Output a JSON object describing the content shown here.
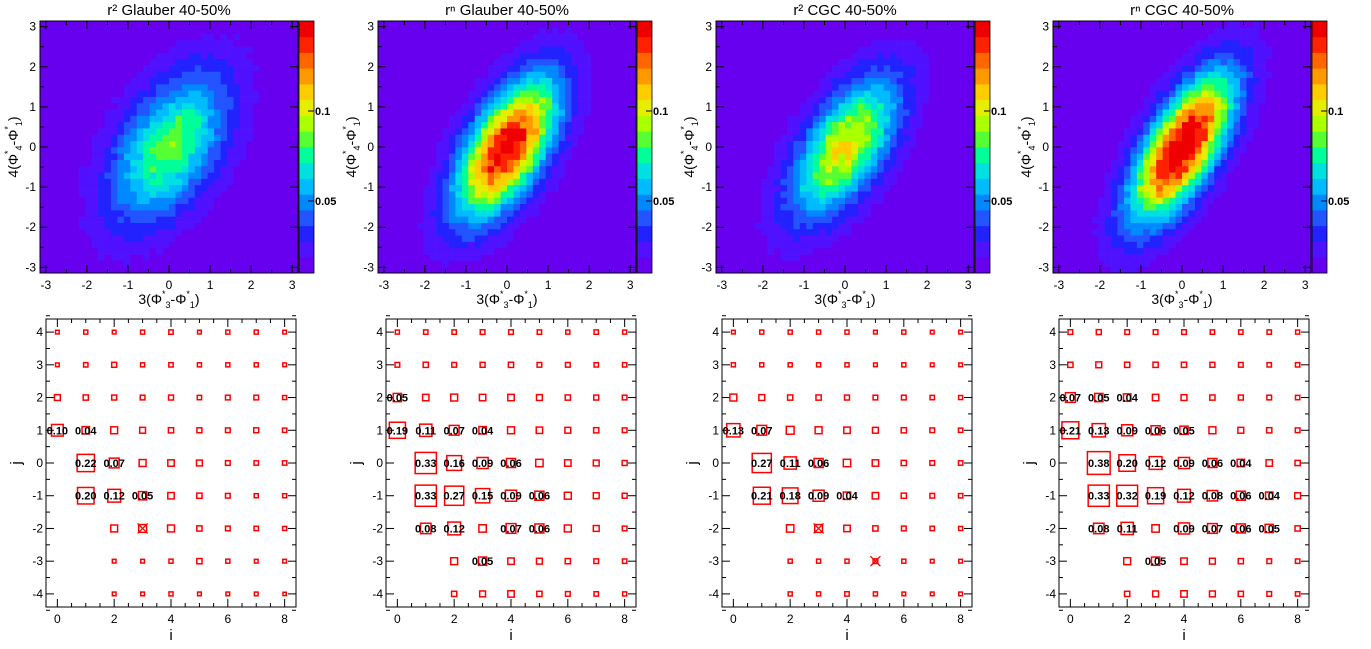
{
  "colors": {
    "box": "#ff0000",
    "axis": "#000000",
    "palette": [
      "#6600ee",
      "#5011ff",
      "#2222ff",
      "#2255ff",
      "#0088ff",
      "#00bbff",
      "#00e0e0",
      "#00ff99",
      "#55ff33",
      "#aaff00",
      "#e6ee00",
      "#ffcc00",
      "#ff9900",
      "#ff6600",
      "#ff2200",
      "#ee0000"
    ]
  },
  "colorbar": {
    "tick_labels": [
      "0.1",
      "0.05"
    ],
    "tick_values": [
      0.1,
      0.05
    ]
  },
  "chart_data": [
    {
      "type": "heatmap",
      "title": "r² Glauber 40-50%",
      "xlabel": "3(Φ₃*-Φ₁*)",
      "ylabel": "4(Φ₄*-Φ₁*)",
      "xlim": [
        -3.1416,
        3.1416
      ],
      "ylim": [
        -3.1416,
        3.1416
      ],
      "x_ticks": [
        -3,
        -2,
        -1,
        0,
        1,
        2,
        3
      ],
      "y_ticks": [
        -3,
        -2,
        -1,
        0,
        1,
        2,
        3
      ],
      "z_range": [
        0.01,
        0.15
      ],
      "peak": 0.085,
      "background": 0.012,
      "correlation": 0.5,
      "sigma_x": 1.0,
      "sigma_y": 1.3,
      "fine_grid": 50
    },
    {
      "type": "heatmap",
      "title": "rⁿ Glauber 40-50%",
      "xlabel": "3(Φ₃*-Φ₁*)",
      "ylabel": "4(Φ₄*-Φ₁*)",
      "xlim": [
        -3.1416,
        3.1416
      ],
      "ylim": [
        -3.1416,
        3.1416
      ],
      "x_ticks": [
        -3,
        -2,
        -1,
        0,
        1,
        2,
        3
      ],
      "y_ticks": [
        -3,
        -2,
        -1,
        0,
        1,
        2,
        3
      ],
      "z_range": [
        0.01,
        0.15
      ],
      "peak": 0.15,
      "background": 0.012,
      "correlation": 0.6,
      "sigma_x": 0.85,
      "sigma_y": 1.2,
      "fine_grid": 50
    },
    {
      "type": "heatmap",
      "title": "r² CGC 40-50%",
      "xlabel": "3(Φ₃*-Φ₁*)",
      "ylabel": "4(Φ₄*-Φ₁*)",
      "xlim": [
        -3.1416,
        3.1416
      ],
      "ylim": [
        -3.1416,
        3.1416
      ],
      "x_ticks": [
        -3,
        -2,
        -1,
        0,
        1,
        2,
        3
      ],
      "y_ticks": [
        -3,
        -2,
        -1,
        0,
        1,
        2,
        3
      ],
      "z_range": [
        0.01,
        0.15
      ],
      "peak": 0.105,
      "background": 0.012,
      "correlation": 0.6,
      "sigma_x": 0.9,
      "sigma_y": 1.2,
      "fine_grid": 50
    },
    {
      "type": "heatmap",
      "title": "rⁿ CGC 40-50%",
      "xlabel": "3(Φ₃*-Φ₁*)",
      "ylabel": "4(Φ₄*-Φ₁*)",
      "xlim": [
        -3.1416,
        3.1416
      ],
      "ylim": [
        -3.1416,
        3.1416
      ],
      "x_ticks": [
        -3,
        -2,
        -1,
        0,
        1,
        2,
        3
      ],
      "y_ticks": [
        -3,
        -2,
        -1,
        0,
        1,
        2,
        3
      ],
      "z_range": [
        0.01,
        0.15
      ],
      "peak": 0.16,
      "background": 0.012,
      "correlation": 0.68,
      "sigma_x": 0.85,
      "sigma_y": 1.25,
      "fine_grid": 50
    },
    {
      "type": "box",
      "xlabel": "i",
      "ylabel": "j",
      "xlim": [
        -0.4,
        8.4
      ],
      "ylim": [
        -4.4,
        4.4
      ],
      "x_ticks": [
        0,
        2,
        4,
        6,
        8
      ],
      "y_ticks": [
        -4,
        -3,
        -2,
        -1,
        0,
        1,
        2,
        3,
        4
      ],
      "i_values": [
        0,
        1,
        2,
        3,
        4,
        5,
        6,
        7,
        8
      ],
      "j_values": [
        4,
        3,
        2,
        1,
        0,
        -1,
        -2,
        -3,
        -4
      ],
      "sizes": [
        [
          0.01,
          0.012,
          0.01,
          0.012,
          0.014,
          0.01,
          0.012,
          0.012,
          0.01
        ],
        [
          0.01,
          0.014,
          0.018,
          0.012,
          0.014,
          0.012,
          0.012,
          0.012,
          0.01
        ],
        [
          0.025,
          0.02,
          0.018,
          0.016,
          0.018,
          0.014,
          0.016,
          0.016,
          0.012
        ],
        [
          0.1,
          0.04,
          0.035,
          0.025,
          0.02,
          0.018,
          0.016,
          0.018,
          0.014
        ],
        [
          0.0,
          0.22,
          0.07,
          0.035,
          0.03,
          0.025,
          0.016,
          0.014,
          0.014
        ],
        [
          0.0,
          0.2,
          0.12,
          0.05,
          0.03,
          0.02,
          0.016,
          0.012,
          0.012
        ],
        [
          0.0,
          0.0,
          0.035,
          0.045,
          0.035,
          0.02,
          0.016,
          0.014,
          0.012
        ],
        [
          0.0,
          0.0,
          0.01,
          0.01,
          0.012,
          0.02,
          0.012,
          0.01,
          0.01
        ],
        [
          0.0,
          0.0,
          0.01,
          0.01,
          0.012,
          0.01,
          0.01,
          0.01,
          0.008
        ]
      ],
      "labels": [
        {
          "i": 0,
          "j": 1,
          "text": "0.10"
        },
        {
          "i": 1,
          "j": 1,
          "text": "0.04"
        },
        {
          "i": 1,
          "j": 0,
          "text": "0.22"
        },
        {
          "i": 2,
          "j": 0,
          "text": "0.07"
        },
        {
          "i": 1,
          "j": -1,
          "text": "0.20"
        },
        {
          "i": 2,
          "j": -1,
          "text": "0.12"
        },
        {
          "i": 3,
          "j": -1,
          "text": "0.05"
        }
      ],
      "crossed": [
        {
          "i": 3,
          "j": -2
        }
      ]
    },
    {
      "type": "box",
      "xlabel": "i",
      "ylabel": "j",
      "xlim": [
        -0.4,
        8.4
      ],
      "ylim": [
        -4.4,
        4.4
      ],
      "x_ticks": [
        0,
        2,
        4,
        6,
        8
      ],
      "y_ticks": [
        -4,
        -3,
        -2,
        -1,
        0,
        1,
        2,
        3,
        4
      ],
      "i_values": [
        0,
        1,
        2,
        3,
        4,
        5,
        6,
        7,
        8
      ],
      "j_values": [
        4,
        3,
        2,
        1,
        0,
        -1,
        -2,
        -3,
        -4
      ],
      "sizes": [
        [
          0.012,
          0.014,
          0.014,
          0.016,
          0.016,
          0.014,
          0.012,
          0.014,
          0.012
        ],
        [
          0.016,
          0.02,
          0.016,
          0.018,
          0.02,
          0.016,
          0.016,
          0.014,
          0.014
        ],
        [
          0.05,
          0.03,
          0.035,
          0.03,
          0.03,
          0.025,
          0.02,
          0.018,
          0.016
        ],
        [
          0.19,
          0.11,
          0.07,
          0.04,
          0.035,
          0.03,
          0.025,
          0.02,
          0.016
        ],
        [
          0.0,
          0.33,
          0.16,
          0.09,
          0.06,
          0.04,
          0.03,
          0.025,
          0.018
        ],
        [
          0.0,
          0.33,
          0.27,
          0.15,
          0.09,
          0.06,
          0.035,
          0.025,
          0.018
        ],
        [
          0.0,
          0.08,
          0.12,
          0.04,
          0.07,
          0.06,
          0.035,
          0.025,
          0.016
        ],
        [
          0.0,
          0.0,
          0.035,
          0.05,
          0.03,
          0.025,
          0.02,
          0.016,
          0.014
        ],
        [
          0.0,
          0.0,
          0.02,
          0.025,
          0.03,
          0.02,
          0.016,
          0.014,
          0.012
        ]
      ],
      "labels": [
        {
          "i": 0,
          "j": 2,
          "text": "0.05"
        },
        {
          "i": 0,
          "j": 1,
          "text": "0.19"
        },
        {
          "i": 1,
          "j": 1,
          "text": "0.11"
        },
        {
          "i": 2,
          "j": 1,
          "text": "0.07"
        },
        {
          "i": 3,
          "j": 1,
          "text": "0.04"
        },
        {
          "i": 1,
          "j": 0,
          "text": "0.33"
        },
        {
          "i": 2,
          "j": 0,
          "text": "0.16"
        },
        {
          "i": 3,
          "j": 0,
          "text": "0.09"
        },
        {
          "i": 4,
          "j": 0,
          "text": "0.06"
        },
        {
          "i": 1,
          "j": -1,
          "text": "0.33"
        },
        {
          "i": 2,
          "j": -1,
          "text": "0.27"
        },
        {
          "i": 3,
          "j": -1,
          "text": "0.15"
        },
        {
          "i": 4,
          "j": -1,
          "text": "0.09"
        },
        {
          "i": 5,
          "j": -1,
          "text": "0.06"
        },
        {
          "i": 1,
          "j": -2,
          "text": "0.08"
        },
        {
          "i": 2,
          "j": -2,
          "text": "0.12"
        },
        {
          "i": 4,
          "j": -2,
          "text": "0.07"
        },
        {
          "i": 5,
          "j": -2,
          "text": "0.06"
        },
        {
          "i": 3,
          "j": -3,
          "text": "0.05"
        }
      ],
      "crossed": []
    },
    {
      "type": "box",
      "xlabel": "i",
      "ylabel": "j",
      "xlim": [
        -0.4,
        8.4
      ],
      "ylim": [
        -4.4,
        4.4
      ],
      "x_ticks": [
        0,
        2,
        4,
        6,
        8
      ],
      "y_ticks": [
        -4,
        -3,
        -2,
        -1,
        0,
        1,
        2,
        3,
        4
      ],
      "i_values": [
        0,
        1,
        2,
        3,
        4,
        5,
        6,
        7,
        8
      ],
      "j_values": [
        4,
        3,
        2,
        1,
        0,
        -1,
        -2,
        -3,
        -4
      ],
      "sizes": [
        [
          0.01,
          0.012,
          0.012,
          0.012,
          0.012,
          0.01,
          0.012,
          0.01,
          0.01
        ],
        [
          0.012,
          0.012,
          0.012,
          0.012,
          0.012,
          0.01,
          0.012,
          0.01,
          0.01
        ],
        [
          0.035,
          0.025,
          0.02,
          0.02,
          0.018,
          0.016,
          0.016,
          0.014,
          0.012
        ],
        [
          0.13,
          0.07,
          0.045,
          0.035,
          0.03,
          0.025,
          0.02,
          0.016,
          0.014
        ],
        [
          0.0,
          0.27,
          0.11,
          0.06,
          0.04,
          0.03,
          0.02,
          0.016,
          0.014
        ],
        [
          0.0,
          0.21,
          0.18,
          0.09,
          0.04,
          0.03,
          0.02,
          0.016,
          0.014
        ],
        [
          0.0,
          0.0,
          0.04,
          0.045,
          0.03,
          0.02,
          0.016,
          0.014,
          0.012
        ],
        [
          0.0,
          0.0,
          0.012,
          0.012,
          0.012,
          0.016,
          0.012,
          0.01,
          0.01
        ],
        [
          0.0,
          0.0,
          0.012,
          0.012,
          0.014,
          0.012,
          0.01,
          0.01,
          0.01
        ]
      ],
      "labels": [
        {
          "i": 0,
          "j": 1,
          "text": "0.13"
        },
        {
          "i": 1,
          "j": 1,
          "text": "0.07"
        },
        {
          "i": 1,
          "j": 0,
          "text": "0.27"
        },
        {
          "i": 2,
          "j": 0,
          "text": "0.11"
        },
        {
          "i": 3,
          "j": 0,
          "text": "0.06"
        },
        {
          "i": 1,
          "j": -1,
          "text": "0.21"
        },
        {
          "i": 2,
          "j": -1,
          "text": "0.18"
        },
        {
          "i": 3,
          "j": -1,
          "text": "0.09"
        },
        {
          "i": 4,
          "j": -1,
          "text": "0.04"
        }
      ],
      "crossed": [
        {
          "i": 3,
          "j": -2
        },
        {
          "i": 5,
          "j": -3
        }
      ]
    },
    {
      "type": "box",
      "xlabel": "i",
      "ylabel": "j",
      "xlim": [
        -0.4,
        8.4
      ],
      "ylim": [
        -4.4,
        4.4
      ],
      "x_ticks": [
        0,
        2,
        4,
        6,
        8
      ],
      "y_ticks": [
        -4,
        -3,
        -2,
        -1,
        0,
        1,
        2,
        3,
        4
      ],
      "i_values": [
        0,
        1,
        2,
        3,
        4,
        5,
        6,
        7,
        8
      ],
      "j_values": [
        4,
        3,
        2,
        1,
        0,
        -1,
        -2,
        -3,
        -4
      ],
      "sizes": [
        [
          0.016,
          0.018,
          0.016,
          0.016,
          0.016,
          0.014,
          0.014,
          0.014,
          0.012
        ],
        [
          0.02,
          0.025,
          0.02,
          0.02,
          0.02,
          0.018,
          0.016,
          0.014,
          0.014
        ],
        [
          0.07,
          0.05,
          0.04,
          0.03,
          0.025,
          0.02,
          0.018,
          0.016,
          0.014
        ],
        [
          0.21,
          0.13,
          0.09,
          0.06,
          0.05,
          0.035,
          0.025,
          0.02,
          0.016
        ],
        [
          0.0,
          0.38,
          0.2,
          0.12,
          0.09,
          0.06,
          0.04,
          0.03,
          0.02
        ],
        [
          0.0,
          0.33,
          0.32,
          0.19,
          0.12,
          0.08,
          0.06,
          0.04,
          0.025
        ],
        [
          0.0,
          0.08,
          0.11,
          0.04,
          0.09,
          0.07,
          0.06,
          0.05,
          0.02
        ],
        [
          0.0,
          0.0,
          0.035,
          0.05,
          0.03,
          0.025,
          0.02,
          0.016,
          0.014
        ],
        [
          0.0,
          0.0,
          0.02,
          0.025,
          0.03,
          0.025,
          0.02,
          0.016,
          0.014
        ]
      ],
      "labels": [
        {
          "i": 0,
          "j": 2,
          "text": "0.07"
        },
        {
          "i": 1,
          "j": 2,
          "text": "0.05"
        },
        {
          "i": 2,
          "j": 2,
          "text": "0.04"
        },
        {
          "i": 0,
          "j": 1,
          "text": "0.21"
        },
        {
          "i": 1,
          "j": 1,
          "text": "0.13"
        },
        {
          "i": 2,
          "j": 1,
          "text": "0.09"
        },
        {
          "i": 3,
          "j": 1,
          "text": "0.06"
        },
        {
          "i": 4,
          "j": 1,
          "text": "0.05"
        },
        {
          "i": 1,
          "j": 0,
          "text": "0.38"
        },
        {
          "i": 2,
          "j": 0,
          "text": "0.20"
        },
        {
          "i": 3,
          "j": 0,
          "text": "0.12"
        },
        {
          "i": 4,
          "j": 0,
          "text": "0.09"
        },
        {
          "i": 5,
          "j": 0,
          "text": "0.06"
        },
        {
          "i": 6,
          "j": 0,
          "text": "0.04"
        },
        {
          "i": 1,
          "j": -1,
          "text": "0.33"
        },
        {
          "i": 2,
          "j": -1,
          "text": "0.32"
        },
        {
          "i": 3,
          "j": -1,
          "text": "0.19"
        },
        {
          "i": 4,
          "j": -1,
          "text": "0.12"
        },
        {
          "i": 5,
          "j": -1,
          "text": "0.08"
        },
        {
          "i": 6,
          "j": -1,
          "text": "0.06"
        },
        {
          "i": 7,
          "j": -1,
          "text": "0.04"
        },
        {
          "i": 1,
          "j": -2,
          "text": "0.08"
        },
        {
          "i": 2,
          "j": -2,
          "text": "0.11"
        },
        {
          "i": 4,
          "j": -2,
          "text": "0.09"
        },
        {
          "i": 5,
          "j": -2,
          "text": "0.07"
        },
        {
          "i": 6,
          "j": -2,
          "text": "0.06"
        },
        {
          "i": 7,
          "j": -2,
          "text": "0.05"
        },
        {
          "i": 3,
          "j": -3,
          "text": "0.05"
        }
      ],
      "crossed": []
    }
  ]
}
